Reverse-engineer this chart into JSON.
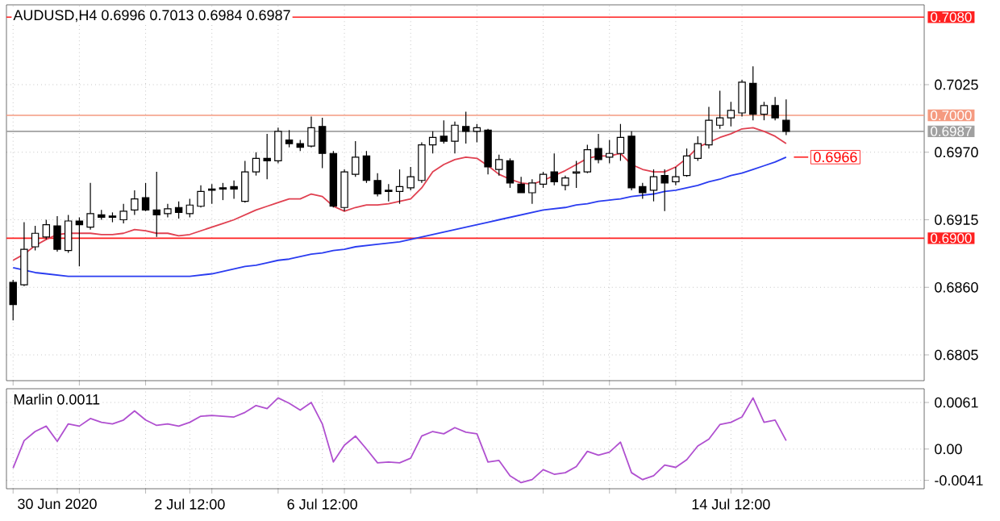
{
  "chart_data": [
    {
      "type": "candlestick",
      "title": "AUDUSD,H4  0.6996 0.7013 0.6984 0.6987",
      "categories": [
        null,
        null,
        null,
        null,
        null,
        null,
        null,
        null,
        null,
        null,
        null,
        null,
        null,
        null,
        null,
        null,
        null,
        null,
        null,
        null,
        null,
        null,
        null,
        null,
        null,
        null,
        null,
        null,
        null,
        null,
        null,
        null,
        null,
        null,
        null,
        null,
        null,
        null,
        null,
        null,
        null,
        null,
        null,
        null,
        null,
        null,
        null,
        null,
        null,
        null,
        null,
        null,
        null,
        null,
        null,
        null,
        null,
        null,
        null,
        null,
        null,
        null,
        null,
        null,
        null,
        null,
        null,
        null,
        null,
        null,
        null
      ],
      "ohlc": [
        [
          0.6864,
          0.6866,
          0.6833,
          0.6846
        ],
        [
          0.6862,
          0.6913,
          0.6861,
          0.6891
        ],
        [
          0.6893,
          0.691,
          0.689,
          0.6904
        ],
        [
          0.6901,
          0.6915,
          0.6899,
          0.6911
        ],
        [
          0.691,
          0.6918,
          0.6889,
          0.6891
        ],
        [
          0.689,
          0.6919,
          0.6888,
          0.6914
        ],
        [
          0.6914,
          0.6917,
          0.6877,
          0.6911
        ],
        [
          0.6909,
          0.6945,
          0.6907,
          0.692
        ],
        [
          0.6919,
          0.6923,
          0.6915,
          0.6917
        ],
        [
          0.6918,
          0.6921,
          0.6913,
          0.6917
        ],
        [
          0.6915,
          0.6928,
          0.6912,
          0.6922
        ],
        [
          0.6923,
          0.6939,
          0.6919,
          0.6932
        ],
        [
          0.6933,
          0.6945,
          0.6922,
          0.6923
        ],
        [
          0.6923,
          0.6954,
          0.6901,
          0.6919
        ],
        [
          0.692,
          0.6928,
          0.6917,
          0.6924
        ],
        [
          0.6925,
          0.693,
          0.6916,
          0.6921
        ],
        [
          0.692,
          0.6932,
          0.6917,
          0.6927
        ],
        [
          0.6926,
          0.6943,
          0.6925,
          0.6938
        ],
        [
          0.694,
          0.6944,
          0.6928,
          0.6939
        ],
        [
          0.6941,
          0.6945,
          0.6931,
          0.694
        ],
        [
          0.6942,
          0.6947,
          0.6932,
          0.694
        ],
        [
          0.693,
          0.6963,
          0.6929,
          0.6954
        ],
        [
          0.6954,
          0.697,
          0.6951,
          0.6965
        ],
        [
          0.6965,
          0.6985,
          0.6948,
          0.6963
        ],
        [
          0.6963,
          0.699,
          0.6961,
          0.6987
        ],
        [
          0.698,
          0.6988,
          0.6974,
          0.6977
        ],
        [
          0.6977,
          0.698,
          0.6971,
          0.6974
        ],
        [
          0.6975,
          0.6999,
          0.6974,
          0.699
        ],
        [
          0.6991,
          0.6998,
          0.6957,
          0.6969
        ],
        [
          0.6969,
          0.6971,
          0.6925,
          0.6926
        ],
        [
          0.6925,
          0.6956,
          0.6922,
          0.6954
        ],
        [
          0.6952,
          0.6979,
          0.695,
          0.6966
        ],
        [
          0.6967,
          0.6971,
          0.6945,
          0.6947
        ],
        [
          0.6947,
          0.6953,
          0.6934,
          0.6936
        ],
        [
          0.6939,
          0.6944,
          0.693,
          0.6938
        ],
        [
          0.6938,
          0.6956,
          0.6928,
          0.6942
        ],
        [
          0.6941,
          0.6958,
          0.6939,
          0.695
        ],
        [
          0.6947,
          0.6978,
          0.6945,
          0.6976
        ],
        [
          0.6976,
          0.6987,
          0.6969,
          0.6982
        ],
        [
          0.6983,
          0.6996,
          0.6977,
          0.6979
        ],
        [
          0.6979,
          0.6995,
          0.6969,
          0.6992
        ],
        [
          0.6991,
          0.7003,
          0.6977,
          0.6987
        ],
        [
          0.6987,
          0.6993,
          0.6978,
          0.699
        ],
        [
          0.6988,
          0.6989,
          0.6952,
          0.6958
        ],
        [
          0.6956,
          0.6968,
          0.6951,
          0.6964
        ],
        [
          0.6963,
          0.6965,
          0.6941,
          0.6945
        ],
        [
          0.6944,
          0.695,
          0.6937,
          0.6937
        ],
        [
          0.6937,
          0.6948,
          0.6928,
          0.6945
        ],
        [
          0.6944,
          0.6954,
          0.6941,
          0.6952
        ],
        [
          0.6954,
          0.6969,
          0.6943,
          0.6946
        ],
        [
          0.6943,
          0.6951,
          0.6939,
          0.6949
        ],
        [
          0.6953,
          0.6963,
          0.6941,
          0.6954
        ],
        [
          0.6954,
          0.6976,
          0.6953,
          0.6972
        ],
        [
          0.6973,
          0.6985,
          0.6961,
          0.6964
        ],
        [
          0.6966,
          0.698,
          0.6961,
          0.6969
        ],
        [
          0.6969,
          0.6993,
          0.6963,
          0.6982
        ],
        [
          0.6983,
          0.6987,
          0.6939,
          0.6941
        ],
        [
          0.6942,
          0.6945,
          0.6932,
          0.6937
        ],
        [
          0.6939,
          0.6956,
          0.693,
          0.695
        ],
        [
          0.6951,
          0.6956,
          0.6922,
          0.6945
        ],
        [
          0.6946,
          0.6958,
          0.6943,
          0.695
        ],
        [
          0.6951,
          0.6973,
          0.695,
          0.6967
        ],
        [
          0.6965,
          0.6983,
          0.6963,
          0.6977
        ],
        [
          0.6976,
          0.7007,
          0.6973,
          0.6996
        ],
        [
          0.6992,
          0.702,
          0.6989,
          0.6998
        ],
        [
          0.6998,
          0.7011,
          0.6991,
          0.7004
        ],
        [
          0.7002,
          0.7029,
          0.6999,
          0.7027
        ],
        [
          0.7026,
          0.704,
          0.6996,
          0.7001
        ],
        [
          0.7001,
          0.7011,
          0.6996,
          0.7008
        ],
        [
          0.7008,
          0.7015,
          0.6996,
          0.6998
        ],
        [
          0.6996,
          0.7013,
          0.6984,
          0.6987
        ]
      ],
      "series": [
        {
          "type": "line",
          "color": "#e04050",
          "values": [
            0.6882,
            0.6887,
            0.6894,
            0.6899,
            0.6903,
            0.6904,
            0.6904,
            0.6904,
            0.6903,
            0.6903,
            0.6904,
            0.6907,
            0.6906,
            0.6904,
            0.6904,
            0.6902,
            0.6903,
            0.6906,
            0.6909,
            0.6912,
            0.6915,
            0.6919,
            0.6923,
            0.6926,
            0.6929,
            0.6932,
            0.6932,
            0.6936,
            0.6934,
            0.6926,
            0.6922,
            0.6925,
            0.6927,
            0.6927,
            0.6928,
            0.693,
            0.6932,
            0.6941,
            0.6954,
            0.696,
            0.6964,
            0.6966,
            0.6965,
            0.6959,
            0.6952,
            0.6948,
            0.6945,
            0.6944,
            0.6947,
            0.6951,
            0.6955,
            0.696,
            0.6965,
            0.6967,
            0.6967,
            0.6969,
            0.696,
            0.6956,
            0.6954,
            0.6954,
            0.6958,
            0.6965,
            0.6974,
            0.6978,
            0.6982,
            0.6985,
            0.6989,
            0.699,
            0.6987,
            0.6983,
            0.6977
          ]
        },
        {
          "type": "line",
          "color": "#2a3cf0",
          "values": [
            0.6876,
            0.6874,
            0.6872,
            0.6871,
            0.687,
            0.6869,
            0.6869,
            0.6869,
            0.6869,
            0.6869,
            0.6869,
            0.6869,
            0.6869,
            0.6869,
            0.6869,
            0.6869,
            0.6869,
            0.687,
            0.6871,
            0.6873,
            0.6875,
            0.6877,
            0.6878,
            0.688,
            0.6882,
            0.6883,
            0.6885,
            0.6887,
            0.6888,
            0.689,
            0.6891,
            0.6893,
            0.6894,
            0.6895,
            0.6896,
            0.6897,
            0.6899,
            0.6901,
            0.6903,
            0.6905,
            0.6907,
            0.6909,
            0.6911,
            0.6913,
            0.6915,
            0.6917,
            0.6919,
            0.6921,
            0.6923,
            0.6924,
            0.6925,
            0.6927,
            0.6928,
            0.693,
            0.6931,
            0.6932,
            0.6934,
            0.6935,
            0.6936,
            0.6938,
            0.6939,
            0.6941,
            0.6943,
            0.6946,
            0.6948,
            0.6951,
            0.6953,
            0.6956,
            0.6959,
            0.6962,
            0.6966
          ]
        }
      ],
      "ylim": [
        0.6784,
        0.709
      ],
      "yticks": [
        {
          "value": 0.7025,
          "label": "0.7025"
        },
        {
          "value": 0.697,
          "label": "0.6970"
        },
        {
          "value": 0.6915,
          "label": "0.6915"
        },
        {
          "value": 0.686,
          "label": "0.6860"
        },
        {
          "value": 0.6805,
          "label": "0.6805"
        }
      ],
      "grid": true,
      "tick_labels": "y",
      "ref_lines": [
        {
          "axis": "y",
          "value": 0.708,
          "label": "0.7080",
          "color": "#ff2020"
        },
        {
          "axis": "y",
          "value": 0.7,
          "label": "0.7000",
          "color": "#f59a80"
        },
        {
          "axis": "y",
          "value": 0.6987,
          "label": "0.6987",
          "color": "#a0a0a0"
        },
        {
          "axis": "y",
          "value": 0.69,
          "label": "0.6900",
          "color": "#ff2020"
        }
      ],
      "annotations": [
        "0.6966"
      ]
    },
    {
      "type": "line",
      "title": "Marlin 0.0011",
      "categories": [
        null,
        null,
        null,
        null,
        "30 Jun 2020",
        null,
        null,
        null,
        null,
        null,
        null,
        null,
        null,
        null,
        null,
        null,
        "2 Jul 12:00",
        null,
        null,
        null,
        null,
        null,
        null,
        null,
        null,
        null,
        null,
        null,
        "6 Jul 12:00",
        null,
        null,
        null,
        null,
        null,
        null,
        null,
        null,
        null,
        null,
        null,
        null,
        null,
        null,
        null,
        null,
        null,
        null,
        null,
        null,
        null,
        null,
        null,
        null,
        null,
        null,
        null,
        null,
        null,
        null,
        null,
        null,
        null,
        null,
        null,
        null,
        "14 Jul 12:00",
        null,
        null,
        null,
        null,
        null
      ],
      "series": [
        {
          "color": "#b050d0",
          "values": [
            -0.0025,
            0.0011,
            0.0023,
            0.003,
            0.001,
            0.0033,
            0.003,
            0.004,
            0.0035,
            0.0033,
            0.0038,
            0.005,
            0.0038,
            0.0031,
            0.0033,
            0.003,
            0.0035,
            0.0043,
            0.0044,
            0.0043,
            0.0042,
            0.0048,
            0.0057,
            0.0053,
            0.0067,
            0.006,
            0.0051,
            0.0061,
            0.0033,
            -0.0017,
            0.0005,
            0.0017,
            0.0,
            -0.0018,
            -0.0017,
            -0.0018,
            -0.0012,
            0.0017,
            0.0023,
            0.002,
            0.0028,
            0.0022,
            0.002,
            -0.0017,
            -0.0015,
            -0.0035,
            -0.0044,
            -0.004,
            -0.0027,
            -0.0033,
            -0.0031,
            -0.0023,
            -0.0003,
            -0.0008,
            -0.0004,
            0.0009,
            -0.0031,
            -0.004,
            -0.0035,
            -0.0021,
            -0.0024,
            -0.0014,
            0.0004,
            0.0013,
            0.0032,
            0.0035,
            0.0042,
            0.0067,
            0.0035,
            0.0038,
            0.0011
          ]
        }
      ],
      "ylim": [
        -0.0052,
        0.0079
      ],
      "yticks": [
        {
          "value": 0.0061,
          "label": "0.0061"
        },
        {
          "value": 0,
          "label": "0.00"
        },
        {
          "value": -0.0041,
          "label": "-0.0041"
        }
      ],
      "grid": true
    }
  ]
}
